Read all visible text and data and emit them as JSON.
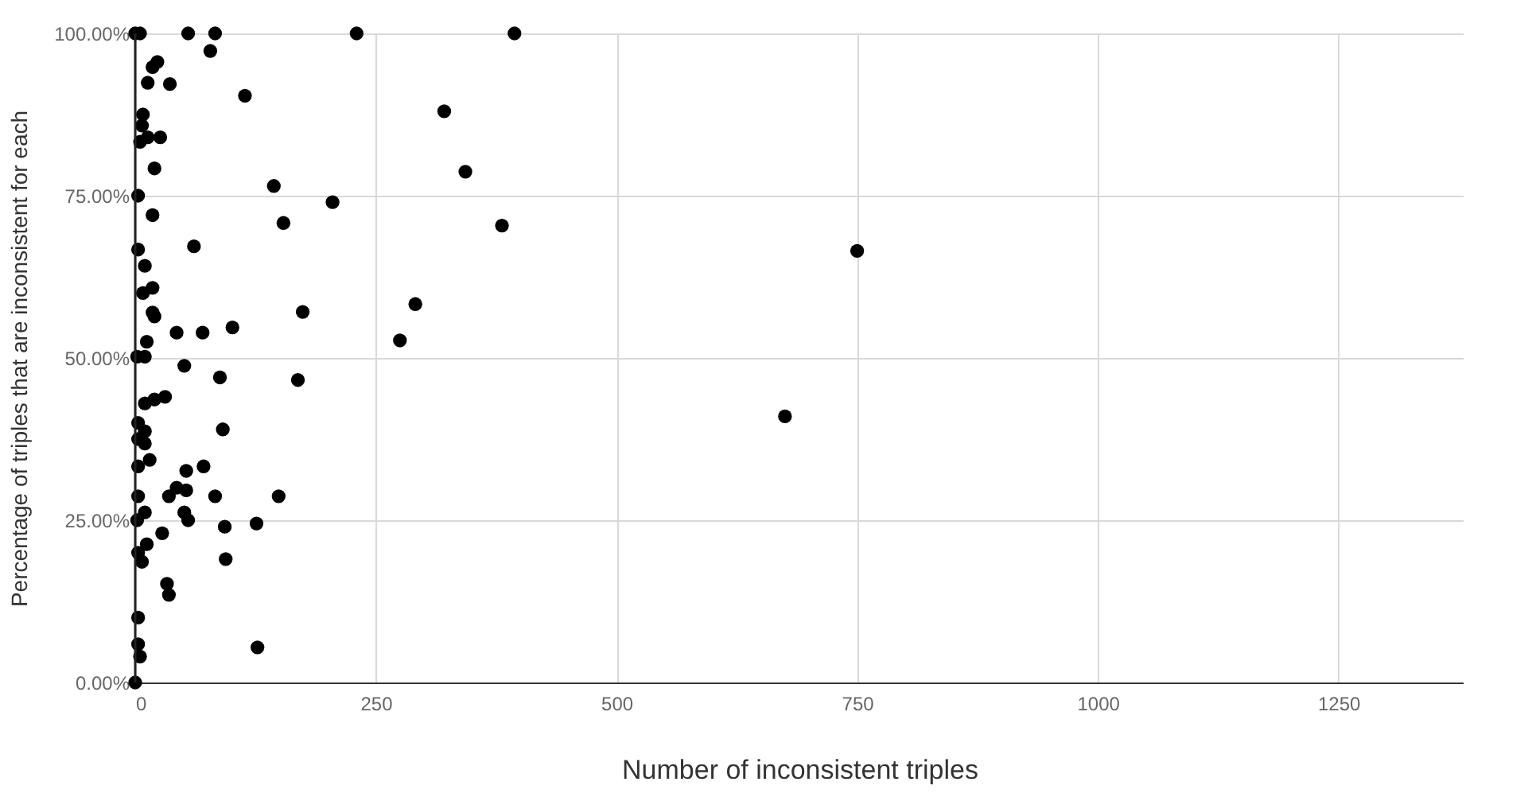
{
  "chart_data": {
    "type": "scatter",
    "xlabel": "Number of inconsistent triples",
    "ylabel": "Percentage of triples that are inconsistent for each",
    "xlim": [
      0,
      1380
    ],
    "xticks": [
      0,
      250,
      500,
      750,
      1000,
      1250
    ],
    "ylim": [
      0,
      100
    ],
    "yticks": [
      {
        "value": 0,
        "label": "0.00%"
      },
      {
        "value": 25,
        "label": "25.00%"
      },
      {
        "value": 50,
        "label": "50.00%"
      },
      {
        "value": 75,
        "label": "75.00%"
      },
      {
        "value": 100,
        "label": "100.00%"
      }
    ],
    "grid": true,
    "marker": "circle",
    "series": [
      {
        "color": "#000000",
        "x": [
          0,
          5,
          55,
          83,
          230,
          394,
          78,
          23,
          18,
          13,
          36,
          114,
          8,
          7,
          5,
          13,
          26,
          20,
          321,
          343,
          144,
          3,
          18,
          205,
          154,
          381,
          3,
          61,
          750,
          10,
          8,
          18,
          18,
          20,
          174,
          291,
          43,
          70,
          101,
          12,
          275,
          2,
          10,
          51,
          88,
          169,
          10,
          20,
          31,
          3,
          10,
          3,
          10,
          91,
          675,
          3,
          15,
          53,
          71,
          3,
          35,
          43,
          53,
          83,
          149,
          10,
          2,
          51,
          55,
          28,
          93,
          126,
          12,
          3,
          7,
          94,
          33,
          35,
          3,
          3,
          5,
          127,
          0
        ],
        "values": [
          100,
          100,
          100,
          100,
          100,
          100,
          97.3,
          95.6,
          94.8,
          92.4,
          92.2,
          90.4,
          87.5,
          85.8,
          83.3,
          84,
          84,
          79.2,
          88,
          78.7,
          76.5,
          75,
          72,
          74,
          70.8,
          70.4,
          66.7,
          67.2,
          66.5,
          64.2,
          60,
          60.8,
          57,
          56.4,
          57.1,
          58.3,
          53.9,
          53.9,
          54.7,
          52.5,
          52.7,
          50.2,
          50.2,
          48.8,
          47,
          46.6,
          43,
          43.6,
          44,
          40,
          38.7,
          37.5,
          36.8,
          39,
          41,
          33.3,
          34.3,
          32.6,
          33.3,
          28.7,
          28.7,
          30,
          29.6,
          28.7,
          28.7,
          26.2,
          25,
          26.2,
          25,
          23,
          24,
          24.5,
          21.3,
          20,
          18.6,
          19,
          15.2,
          13.5,
          10,
          5.9,
          4,
          5.4,
          0
        ]
      }
    ]
  }
}
